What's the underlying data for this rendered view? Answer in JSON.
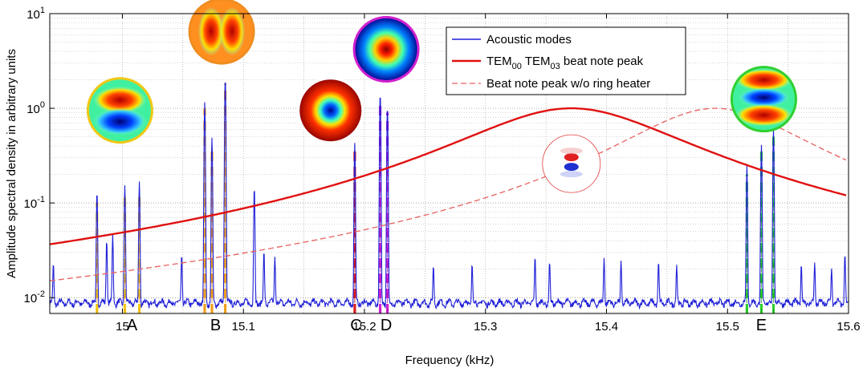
{
  "chart_data": {
    "type": "line",
    "xlabel": "Frequency (kHz)",
    "ylabel": "Amplitude spectral density in arbitrary units",
    "xlim": [
      14.94,
      15.6
    ],
    "ylim": [
      0.0068,
      10
    ],
    "y_scale": "log",
    "grid": true,
    "legend_position": "top-right",
    "x_ticks": [
      15,
      15.1,
      15.2,
      15.3,
      15.4,
      15.5,
      15.6
    ],
    "y_ticks": [
      {
        "value": 0.01,
        "base": "10",
        "exp": "-2"
      },
      {
        "value": 0.1,
        "base": "10",
        "exp": "-1"
      },
      {
        "value": 1,
        "base": "10",
        "exp": "0"
      },
      {
        "value": 10,
        "base": "10",
        "exp": "1"
      }
    ],
    "legend": {
      "acoustic": "Acoustic modes",
      "beat_prefix": "TEM",
      "beat_sub1": "00",
      "beat_mid": " TEM",
      "beat_sub2": "03",
      "beat_suffix": " beat note peak",
      "noheater": "Beat note peak w/o ring heater"
    },
    "series": [
      {
        "name": "Acoustic modes",
        "color": "#1f1fd8",
        "baseline": 0.0088,
        "peaks": [
          [
            14.943,
            0.014
          ],
          [
            14.979,
            0.125
          ],
          [
            14.987,
            0.033
          ],
          [
            14.992,
            0.038
          ],
          [
            15.002,
            0.145
          ],
          [
            15.014,
            0.16
          ],
          [
            15.049,
            0.02
          ],
          [
            15.068,
            1.15
          ],
          [
            15.074,
            0.48
          ],
          [
            15.085,
            2.1
          ],
          [
            15.109,
            0.14
          ],
          [
            15.117,
            0.022
          ],
          [
            15.126,
            0.019
          ],
          [
            15.192,
            0.42
          ],
          [
            15.213,
            1.45
          ],
          [
            15.219,
            1.05
          ],
          [
            15.257,
            0.013
          ],
          [
            15.289,
            0.014
          ],
          [
            15.341,
            0.018
          ],
          [
            15.353,
            0.015
          ],
          [
            15.398,
            0.018
          ],
          [
            15.412,
            0.016
          ],
          [
            15.443,
            0.015
          ],
          [
            15.458,
            0.013
          ],
          [
            15.516,
            0.24
          ],
          [
            15.528,
            0.4
          ],
          [
            15.538,
            0.6
          ],
          [
            15.561,
            0.014
          ],
          [
            15.572,
            0.015
          ],
          [
            15.586,
            0.012
          ],
          [
            15.597,
            0.02
          ]
        ]
      },
      {
        "name": "TEM00 TEM03 beat note peak",
        "color": "#e01010",
        "center": 15.371,
        "peak": 1.0,
        "hwhm": 0.084
      },
      {
        "name": "Beat note peak w/o ring heater",
        "color": "#e86060",
        "center": 15.49,
        "peak": 1.0,
        "hwhm": 0.068
      }
    ],
    "mode_markers": [
      {
        "freq": 14.979,
        "top": 0.1,
        "color": "#f0c814",
        "dark": "#e8a020"
      },
      {
        "freq": 15.002,
        "top": 0.12,
        "color": "#f0c814",
        "dark": "#e8a020"
      },
      {
        "freq": 15.014,
        "top": 0.13,
        "color": "#f0c814",
        "dark": "#e8a020"
      },
      {
        "freq": 15.068,
        "top": 1.0,
        "color": "#f0a020",
        "dark": "#e8a020"
      },
      {
        "freq": 15.074,
        "top": 0.4,
        "color": "#f0a020",
        "dark": "#e8a020"
      },
      {
        "freq": 15.085,
        "top": 1.8,
        "color": "#f0a020",
        "dark": "#e8a020"
      },
      {
        "freq": 15.192,
        "top": 0.35,
        "color": "#e02020",
        "dark": "#c01010"
      },
      {
        "freq": 15.213,
        "top": 1.2,
        "color": "#d020d0",
        "dark": "#b010b0"
      },
      {
        "freq": 15.219,
        "top": 0.9,
        "color": "#d020d0",
        "dark": "#b010b0"
      },
      {
        "freq": 15.516,
        "top": 0.2,
        "color": "#30d030",
        "dark": "#20a020"
      },
      {
        "freq": 15.528,
        "top": 0.35,
        "color": "#30d030",
        "dark": "#20a020"
      },
      {
        "freq": 15.538,
        "top": 0.5,
        "color": "#30d030",
        "dark": "#20a020"
      }
    ],
    "mode_labels": [
      {
        "text": "A",
        "freq": 15.008
      },
      {
        "text": "B",
        "freq": 15.077
      },
      {
        "text": "C",
        "freq": 15.193
      },
      {
        "text": "D",
        "freq": 15.218
      },
      {
        "text": "E",
        "freq": 15.528
      }
    ],
    "mode_images": [
      {
        "name": "mode-image-a",
        "freq": 14.998,
        "value": 0.95,
        "ring": "#f0c814",
        "pattern": "two-lobe"
      },
      {
        "name": "mode-image-b",
        "freq": 15.082,
        "value": 6.5,
        "ring": "#f08c20",
        "pattern": "two-lobe-vertical"
      },
      {
        "name": "mode-image-c",
        "freq": 15.172,
        "value": 0.95,
        "ring": "#ffffff",
        "pattern": "ring"
      },
      {
        "name": "mode-image-d",
        "freq": 15.218,
        "value": 4.2,
        "ring": "#d020d0",
        "pattern": "gaussian"
      },
      {
        "name": "mode-image-e",
        "freq": 15.53,
        "value": 1.25,
        "ring": "#30d030",
        "pattern": "three-lobe"
      },
      {
        "name": "beat-mode-image",
        "freq": 15.371,
        "value": 0.26,
        "ring": "#e04040",
        "pattern": "faint"
      }
    ]
  }
}
